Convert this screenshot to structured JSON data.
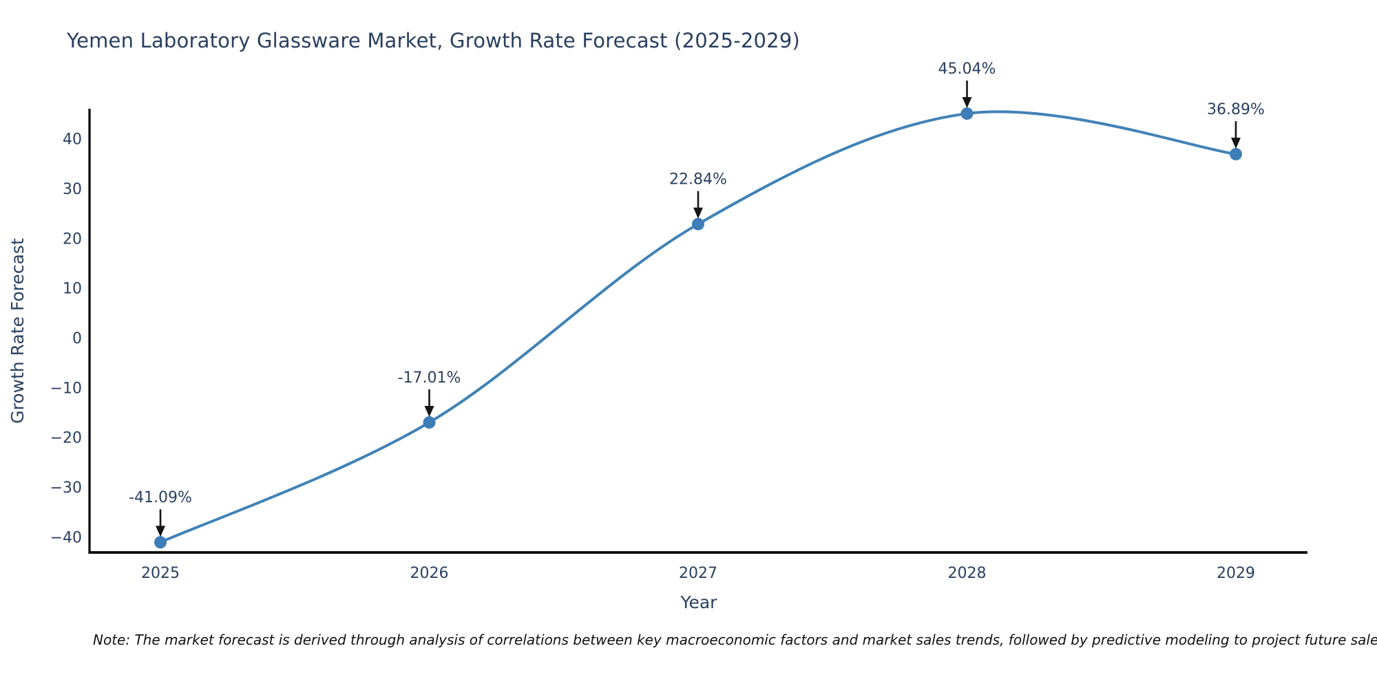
{
  "chart_data": {
    "type": "line",
    "title": "Yemen Laboratory Glassware Market, Growth Rate Forecast (2025-2029)",
    "xlabel": "Year",
    "ylabel": "Growth Rate Forecast",
    "categories": [
      "2025",
      "2026",
      "2027",
      "2028",
      "2029"
    ],
    "series": [
      {
        "name": "Growth Rate Forecast",
        "values": [
          -41.09,
          -17.01,
          22.84,
          45.04,
          36.89
        ]
      }
    ],
    "point_labels": [
      "-41.09%",
      "-17.01%",
      "22.84%",
      "45.04%",
      "36.89%"
    ],
    "y_ticks": {
      "values": [
        40,
        30,
        20,
        10,
        0,
        -10,
        -20,
        -30,
        -40
      ],
      "labels": [
        "40",
        "30",
        "20",
        "10",
        "0",
        "−10",
        "−20",
        "−30",
        "−40"
      ]
    },
    "ylim": [
      -43,
      51
    ],
    "grid": false,
    "legend": "none",
    "line_shape": "spline",
    "marker": "circle",
    "annotation_arrows": true,
    "colors": {
      "line": "#4182b6",
      "marker": "#3d7db8",
      "annotation_text": "#2a3f5f",
      "arrow": "#151515",
      "axis_line": "#000000",
      "tick_text": "#2a3f5f",
      "title_text": "#2a3f5f",
      "note_text": "#111111",
      "background": "#ffffff"
    }
  },
  "note": {
    "text": "Note: The market forecast is derived through analysis of correlations between key macroeconomic factors and market sales trends, followed by predictive modeling to project future sales"
  }
}
